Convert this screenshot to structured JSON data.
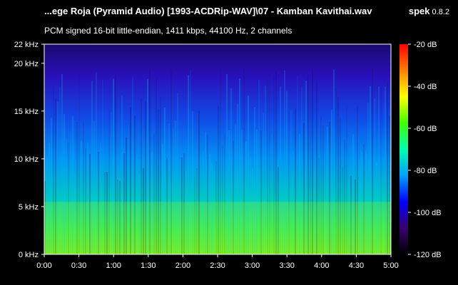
{
  "title": "...ege Roja (Pyramid Audio) [1993-ACDRip-WAV]\\07 - Kamban Kavithai.wav",
  "app": {
    "name": "spek",
    "version": "0.8.2"
  },
  "subtitle": "PCM signed 16-bit little-endian, 1411 kbps, 44100 Hz, 2 channels",
  "colors": {
    "background": "#000000",
    "spectrogram_floor": "#1a0a6e",
    "axis": "#ffffff"
  },
  "chart_data": {
    "type": "heatmap",
    "title": "",
    "xlabel": "",
    "ylabel": "",
    "x_unit": "time",
    "x_range": [
      "0:00",
      "5:00"
    ],
    "y_range_khz": [
      0,
      22
    ],
    "x_ticks": [
      "0:00",
      "0:30",
      "1:00",
      "1:30",
      "2:00",
      "2:30",
      "3:00",
      "3:30",
      "4:00",
      "4:30",
      "5:00"
    ],
    "y_ticks": [
      "0 kHz",
      "5 kHz",
      "10 kHz",
      "15 kHz",
      "20 kHz",
      "22 kHz"
    ],
    "colorbar": {
      "ticks": [
        "-20 dB",
        "-40 dB",
        "-60 dB",
        "-80 dB",
        "-100 dB",
        "-120 dB"
      ],
      "range_db": [
        -120,
        -20
      ],
      "stops": [
        "#000000",
        "#3a0070",
        "#0000ff",
        "#00a0ff",
        "#00ffb0",
        "#40ff00",
        "#ffff00",
        "#ff8000",
        "#ff0000"
      ]
    }
  }
}
